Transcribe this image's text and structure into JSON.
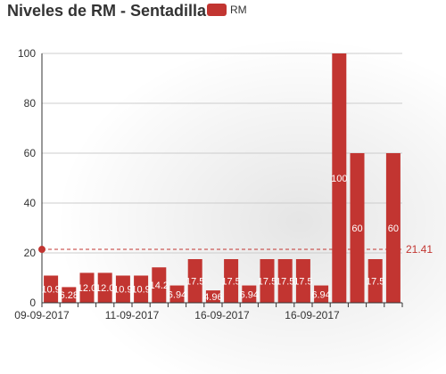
{
  "chart_data": {
    "type": "bar",
    "title": "Niveles de RM - Sentadilla",
    "legend": {
      "position": "top-left",
      "entries": [
        "RM"
      ]
    },
    "series": [
      {
        "name": "RM",
        "color": "#c23531",
        "values": [
          10.9,
          6.28,
          12.0,
          12.0,
          10.9,
          10.9,
          14.2,
          6.94,
          17.5,
          4.96,
          17.5,
          6.94,
          17.5,
          17.5,
          17.5,
          6.94,
          100,
          60,
          17.5,
          60
        ],
        "labels": [
          "10.9",
          "6.28",
          "12.0",
          "12.0",
          "10.9",
          "10.9",
          "14.2",
          "6.94",
          "17.5",
          "4.96",
          "17.5",
          "6.94",
          "17.5",
          "17.5",
          "17.5",
          "6.94",
          "100",
          "60",
          "17.5",
          "60"
        ]
      }
    ],
    "x_tick_labels": [
      {
        "index": 0,
        "label": "09-09-2017"
      },
      {
        "index": 5,
        "label": "11-09-2017"
      },
      {
        "index": 10,
        "label": "16-09-2017"
      },
      {
        "index": 15,
        "label": "16-09-2017"
      }
    ],
    "y_ticks": [
      0,
      20,
      40,
      60,
      80,
      100
    ],
    "ylim": [
      0,
      100
    ],
    "grid": true,
    "mean_line": {
      "value": 21.41,
      "label": "21.41",
      "color": "#c23531"
    },
    "xlabel": "",
    "ylabel": ""
  }
}
